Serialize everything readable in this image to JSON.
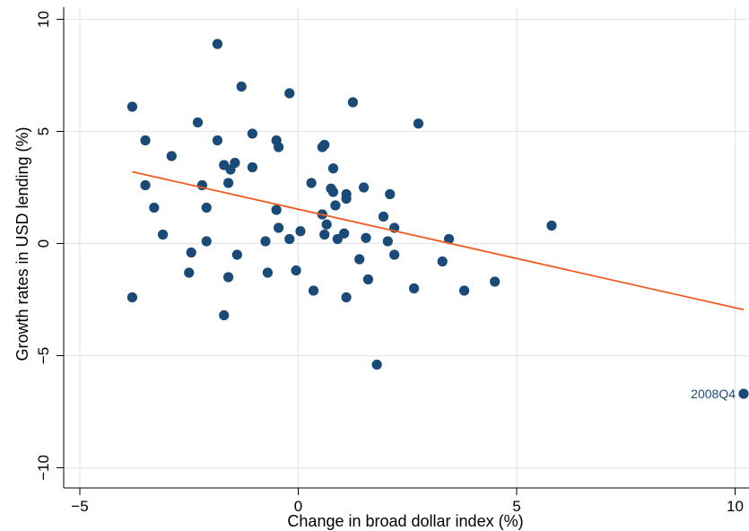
{
  "chart_data": {
    "type": "scatter",
    "xlabel": "Change in broad dollar index (%)",
    "ylabel": "Growth rates in USD lending (%)",
    "xlim": [
      -5.1,
      10.2
    ],
    "ylim": [
      -11,
      10.2
    ],
    "xticks": [
      -5,
      0,
      5,
      10
    ],
    "yticks": [
      -10,
      -5,
      0,
      5,
      10
    ],
    "xtick_labels": [
      "−5",
      "0",
      "5",
      "10"
    ],
    "ytick_labels": [
      "−10",
      "−5",
      "0",
      "5",
      "10"
    ],
    "grid": "y-major",
    "point_color": "#1a4a78",
    "fit_color": "#f05a1e",
    "points": [
      {
        "x": -3.8,
        "y": 6.1
      },
      {
        "x": -3.8,
        "y": -2.4
      },
      {
        "x": -3.5,
        "y": 4.6
      },
      {
        "x": -3.5,
        "y": 2.6
      },
      {
        "x": -3.3,
        "y": 1.6
      },
      {
        "x": -3.1,
        "y": 0.4
      },
      {
        "x": -2.9,
        "y": 3.9
      },
      {
        "x": -2.5,
        "y": -1.3
      },
      {
        "x": -2.45,
        "y": -0.4
      },
      {
        "x": -2.3,
        "y": 5.4
      },
      {
        "x": -2.2,
        "y": 2.6
      },
      {
        "x": -2.1,
        "y": 1.6
      },
      {
        "x": -2.1,
        "y": 0.1
      },
      {
        "x": -1.85,
        "y": 8.9
      },
      {
        "x": -1.85,
        "y": 4.6
      },
      {
        "x": -1.7,
        "y": 3.5
      },
      {
        "x": -1.7,
        "y": -3.2
      },
      {
        "x": -1.55,
        "y": 3.3
      },
      {
        "x": -1.6,
        "y": 2.7
      },
      {
        "x": -1.6,
        "y": -1.5
      },
      {
        "x": -1.45,
        "y": 3.6
      },
      {
        "x": -1.4,
        "y": -0.5
      },
      {
        "x": -1.3,
        "y": 7.0
      },
      {
        "x": -1.05,
        "y": 4.9
      },
      {
        "x": -1.05,
        "y": 3.4
      },
      {
        "x": -0.75,
        "y": 0.1
      },
      {
        "x": -0.7,
        "y": -1.3
      },
      {
        "x": -0.5,
        "y": 4.6
      },
      {
        "x": -0.5,
        "y": 1.5
      },
      {
        "x": -0.45,
        "y": 4.3
      },
      {
        "x": -0.45,
        "y": 0.7
      },
      {
        "x": -0.2,
        "y": 6.7
      },
      {
        "x": -0.2,
        "y": 0.2
      },
      {
        "x": -0.05,
        "y": -1.2
      },
      {
        "x": 0.05,
        "y": 0.55
      },
      {
        "x": 0.3,
        "y": 2.7
      },
      {
        "x": 0.35,
        "y": -2.1
      },
      {
        "x": 0.55,
        "y": 4.3
      },
      {
        "x": 0.6,
        "y": 4.4
      },
      {
        "x": 0.55,
        "y": 1.3
      },
      {
        "x": 0.6,
        "y": 0.4
      },
      {
        "x": 0.65,
        "y": 0.85
      },
      {
        "x": 0.75,
        "y": 2.45
      },
      {
        "x": 0.8,
        "y": 2.3
      },
      {
        "x": 0.8,
        "y": 3.35
      },
      {
        "x": 0.85,
        "y": 1.7
      },
      {
        "x": 0.9,
        "y": 0.2
      },
      {
        "x": 1.05,
        "y": 0.45
      },
      {
        "x": 1.1,
        "y": 2.0
      },
      {
        "x": 1.1,
        "y": 2.2
      },
      {
        "x": 1.1,
        "y": -2.4
      },
      {
        "x": 1.25,
        "y": 6.3
      },
      {
        "x": 1.4,
        "y": -0.7
      },
      {
        "x": 1.5,
        "y": 2.5
      },
      {
        "x": 1.55,
        "y": 0.25
      },
      {
        "x": 1.6,
        "y": -1.6
      },
      {
        "x": 1.8,
        "y": -5.4
      },
      {
        "x": 1.95,
        "y": 1.2
      },
      {
        "x": 2.05,
        "y": 0.1
      },
      {
        "x": 2.1,
        "y": 2.2
      },
      {
        "x": 2.2,
        "y": 0.7
      },
      {
        "x": 2.2,
        "y": -0.5
      },
      {
        "x": 2.65,
        "y": -2.0
      },
      {
        "x": 2.75,
        "y": 5.35
      },
      {
        "x": 3.3,
        "y": -0.8
      },
      {
        "x": 3.45,
        "y": 0.2
      },
      {
        "x": 3.8,
        "y": -2.1
      },
      {
        "x": 4.5,
        "y": -1.7
      },
      {
        "x": 5.8,
        "y": 0.8
      },
      {
        "x": 10.2,
        "y": -6.7,
        "label": "2008Q4"
      }
    ],
    "fit_line": {
      "x": [
        -3.8,
        10.2
      ],
      "y": [
        3.2,
        -2.95
      ]
    }
  }
}
